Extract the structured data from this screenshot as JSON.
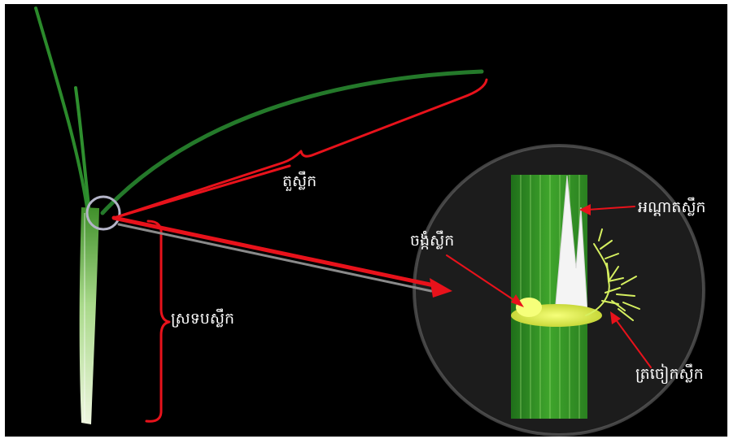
{
  "labels": {
    "blade": "តួស្លឹក",
    "sheath": "ស្រទបស្លឹក",
    "collar": "ចង្កំស្លឹក",
    "ligule": "អណ្តាតស្លឹក",
    "auricle": "ត្រចៀកស្លឹក"
  },
  "colors": {
    "background": "#000000",
    "annotation": "#e8121b",
    "leaf_green": "#1f7a1f",
    "sheath_pale": "#cfe8b0",
    "collar_yellow": "#e6f050",
    "ligule_white": "#f4f4f4"
  }
}
